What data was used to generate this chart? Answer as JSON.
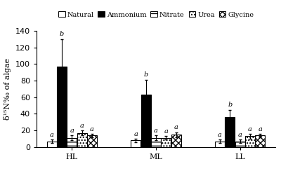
{
  "groups": [
    "HL",
    "ML",
    "LL"
  ],
  "categories": [
    "Natural",
    "Ammonium",
    "Nitrate",
    "Urea",
    "Glycine"
  ],
  "values": [
    [
      7,
      97,
      11,
      17,
      14
    ],
    [
      8,
      63,
      11,
      11,
      15
    ],
    [
      7,
      36,
      7,
      13,
      14
    ]
  ],
  "errors": [
    [
      2,
      33,
      3,
      3,
      2
    ],
    [
      2,
      18,
      3,
      2,
      3
    ],
    [
      2,
      9,
      2,
      3,
      2
    ]
  ],
  "labels": [
    [
      "a",
      "b",
      "a",
      "a",
      "a"
    ],
    [
      "a",
      "b",
      "a",
      "a",
      "a"
    ],
    [
      "a",
      "b",
      "a",
      "a",
      "a"
    ]
  ],
  "bar_colors": [
    "white",
    "black",
    "white",
    "white",
    "white"
  ],
  "bar_hatches": [
    "",
    "",
    "---",
    "...",
    "\\\\\\\\"
  ],
  "bar_edgecolors": [
    "black",
    "black",
    "black",
    "black",
    "black"
  ],
  "ylabel": "δ¹⁵N‰ of algae",
  "ylim": [
    0,
    140
  ],
  "yticks": [
    0,
    20,
    40,
    60,
    80,
    100,
    120,
    140
  ],
  "legend_labels": [
    "Natural",
    "Ammonium",
    "Nitrate",
    "Urea",
    "Glycine"
  ],
  "bar_width": 0.12,
  "fontsize": 8,
  "label_fontsize": 7,
  "group_positions": [
    1.0,
    2.0,
    3.0
  ]
}
